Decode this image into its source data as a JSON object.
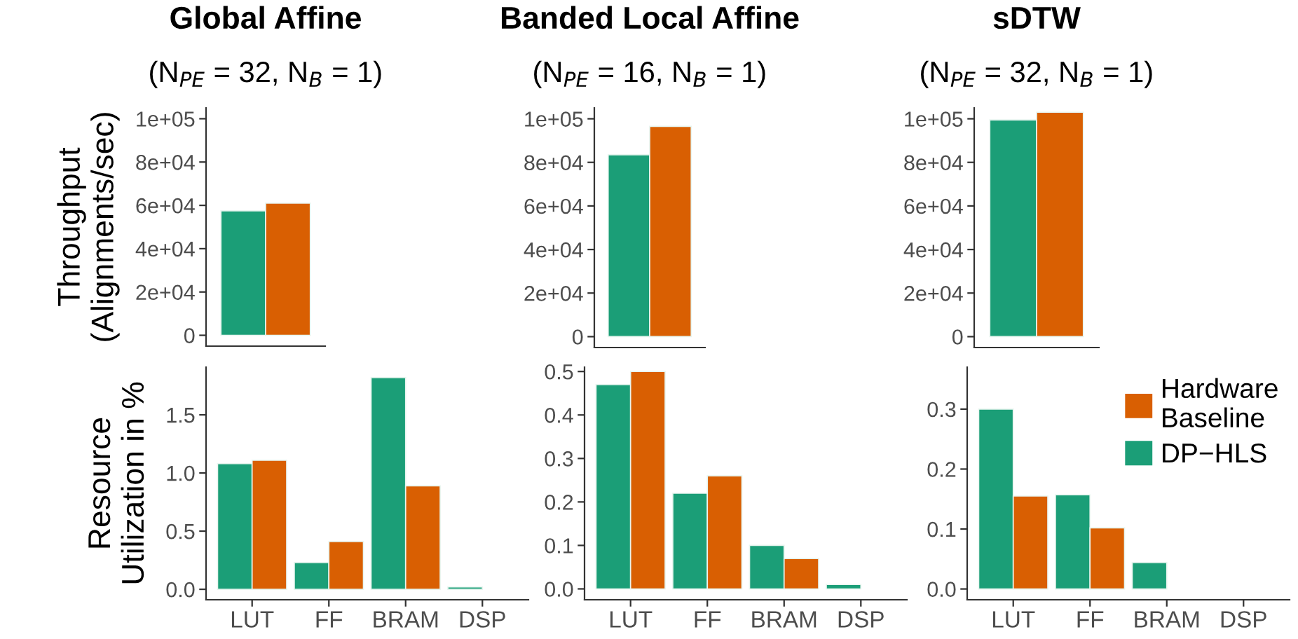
{
  "chart_data": [
    {
      "type": "bar",
      "title": "Global Affine",
      "subtitle": "(N$_{PE}$ = 32, N$_{B}$ = 1)",
      "ylabel": "Throughput\n(Alignments/sec)",
      "categories": [
        null
      ],
      "series": [
        {
          "color": "#1b9e77",
          "values": [
            57500
          ]
        },
        {
          "color": "#d95f02",
          "values": [
            61000
          ]
        }
      ],
      "ylim": [
        -5000,
        105000
      ],
      "yticks": [
        0,
        {
          "value": 20000,
          "label": "2e+04"
        },
        {
          "value": 40000,
          "label": "4e+04"
        },
        {
          "value": 60000,
          "label": "6e+04"
        },
        {
          "value": 80000,
          "label": "8e+04"
        },
        {
          "value": 100000,
          "label": "1e+05"
        }
      ]
    },
    {
      "type": "bar",
      "title": "Banded Local Affine",
      "subtitle": "(N$_{PE}$ = 16, N$_{B}$ = 1)",
      "categories": [
        null
      ],
      "series": [
        {
          "color": "#1b9e77",
          "values": [
            83500
          ]
        },
        {
          "color": "#d95f02",
          "values": [
            96500
          ]
        }
      ],
      "ylim": [
        -5000,
        105000
      ],
      "yticks": [
        0,
        {
          "value": 20000,
          "label": "2e+04"
        },
        {
          "value": 40000,
          "label": "4e+04"
        },
        {
          "value": 60000,
          "label": "6e+04"
        },
        {
          "value": 80000,
          "label": "8e+04"
        },
        {
          "value": 100000,
          "label": "1e+05"
        }
      ]
    },
    {
      "type": "bar",
      "title": "sDTW",
      "subtitle": "(N$_{PE}$ = 32, N$_{B}$ = 1)",
      "categories": [
        null
      ],
      "series": [
        {
          "color": "#1b9e77",
          "values": [
            99500
          ]
        },
        {
          "color": "#d95f02",
          "values": [
            103000
          ]
        }
      ],
      "ylim": [
        -5000,
        105000
      ],
      "yticks": [
        0,
        {
          "value": 20000,
          "label": "2e+04"
        },
        {
          "value": 40000,
          "label": "4e+04"
        },
        {
          "value": 60000,
          "label": "6e+04"
        },
        {
          "value": 80000,
          "label": "8e+04"
        },
        {
          "value": 100000,
          "label": "1e+05"
        }
      ]
    },
    {
      "type": "bar",
      "ylabel": "Resource\nUtilization in %",
      "categories": [
        "LUT",
        "FF",
        "BRAM",
        "DSP"
      ],
      "series": [
        {
          "color": "#1b9e77",
          "values": [
            1.08,
            0.23,
            1.82,
            0.02
          ]
        },
        {
          "color": "#d95f02",
          "values": [
            1.11,
            0.41,
            0.89,
            null
          ]
        }
      ],
      "ylim": [
        -0.09,
        1.91
      ],
      "yticks": [
        {
          "value": 0,
          "label": "0.0"
        },
        0.5,
        {
          "value": 1,
          "label": "1.0"
        },
        1.5
      ]
    },
    {
      "type": "bar",
      "categories": [
        "LUT",
        "FF",
        "BRAM",
        "DSP"
      ],
      "series": [
        {
          "color": "#1b9e77",
          "values": [
            0.47,
            0.22,
            0.1,
            0.01
          ]
        },
        {
          "color": "#d95f02",
          "values": [
            0.5,
            0.26,
            0.07,
            null
          ]
        }
      ],
      "ylim": [
        -0.025,
        0.51
      ],
      "yticks": [
        {
          "value": 0,
          "label": "0.0"
        },
        0.1,
        0.2,
        0.3,
        0.4,
        0.5
      ]
    },
    {
      "type": "bar",
      "categories": [
        "LUT",
        "FF",
        "BRAM",
        "DSP"
      ],
      "series": [
        {
          "name": "DP−HLS",
          "color": "#1b9e77",
          "values": [
            0.3,
            0.157,
            0.044,
            null
          ]
        },
        {
          "name": "Hardware Baseline",
          "color": "#d95f02",
          "values": [
            0.155,
            0.102,
            null,
            null
          ]
        }
      ],
      "ylim": [
        -0.018,
        0.37
      ],
      "yticks": [
        {
          "value": 0,
          "label": "0.0"
        },
        0.1,
        0.2,
        0.3
      ],
      "legend": "top right"
    }
  ]
}
